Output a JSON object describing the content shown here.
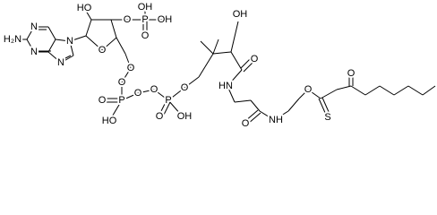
{
  "labels": [
    "H₂N",
    "N",
    "N",
    "N",
    "N",
    "O",
    "HO",
    "O",
    "P",
    "OH",
    "OH",
    "O",
    "O",
    "O",
    "P",
    "O",
    "HO",
    "O",
    "O",
    "P",
    "O",
    "OH",
    "O",
    "OH",
    "HN",
    "O",
    "O",
    "NH",
    "O",
    "S",
    "O"
  ]
}
